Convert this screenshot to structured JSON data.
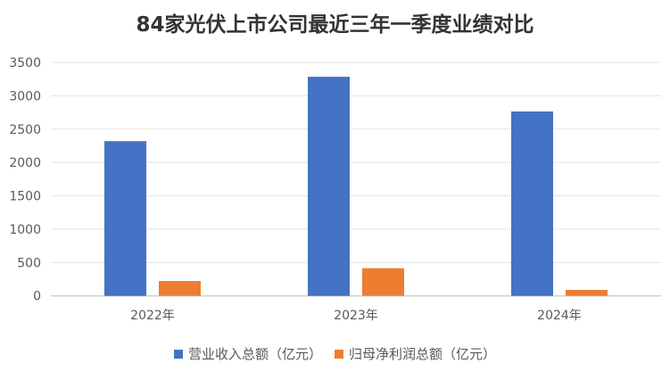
{
  "chart_data": {
    "type": "bar",
    "title": "84家光伏上市公司最近三年一季度业绩对比",
    "categories": [
      "2022年",
      "2023年",
      "2024年"
    ],
    "series": [
      {
        "name": "营业收入总额（亿元）",
        "color": "#4472C4",
        "values": [
          2320,
          3285,
          2765
        ]
      },
      {
        "name": "归母净利润总额（亿元）",
        "color": "#ED7D31",
        "values": [
          223,
          415,
          89
        ]
      }
    ],
    "xlabel": "",
    "ylabel": "",
    "ylim": [
      0,
      3500
    ],
    "yticks": [
      0,
      500,
      1000,
      1500,
      2000,
      2500,
      3000,
      3500
    ],
    "grid": true,
    "legend": "bottom"
  }
}
